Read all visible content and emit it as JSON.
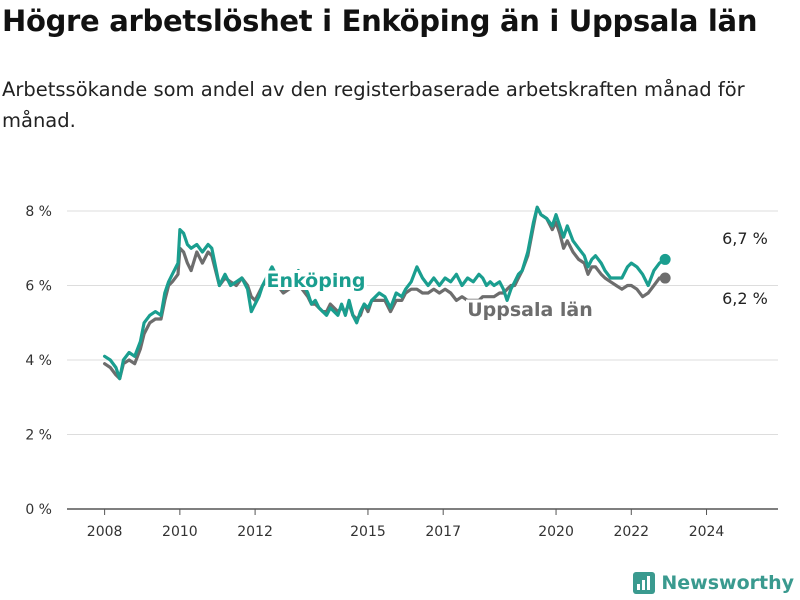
{
  "title": "Högre arbetslöshet i Enköping än i Uppsala län",
  "subtitle": "Arbetssökande som andel av den registerbaserade arbetskraften månad för månad.",
  "brand": {
    "name": "Newsworthy",
    "icon": "bar-chart-icon"
  },
  "colors": {
    "enkoping": "#1a9e8f",
    "uppsala": "#6d6d6d",
    "grid": "#dddddd"
  },
  "chart_data": {
    "type": "line",
    "x_range": [
      2007.0,
      2025.9
    ],
    "ylim": [
      0,
      8
    ],
    "yticks": [
      0,
      2,
      4,
      6,
      8
    ],
    "ytick_labels": [
      "0 %",
      "2 %",
      "4 %",
      "6 %",
      "8 %"
    ],
    "xticks": [
      2008,
      2010,
      2012,
      2015,
      2017,
      2020,
      2022,
      2024
    ],
    "xtick_labels": [
      "2008",
      "2010",
      "2012",
      "2015",
      "2017",
      "2020",
      "2022",
      "2024"
    ],
    "grid": true,
    "series": [
      {
        "name": "Enköping",
        "last_value_label": "6,7 %",
        "points": [
          [
            2008.0,
            4.1
          ],
          [
            2008.15,
            4.0
          ],
          [
            2008.3,
            3.8
          ],
          [
            2008.4,
            3.5
          ],
          [
            2008.5,
            4.0
          ],
          [
            2008.65,
            4.2
          ],
          [
            2008.8,
            4.1
          ],
          [
            2008.95,
            4.5
          ],
          [
            2009.05,
            5.0
          ],
          [
            2009.2,
            5.2
          ],
          [
            2009.35,
            5.3
          ],
          [
            2009.5,
            5.2
          ],
          [
            2009.6,
            5.8
          ],
          [
            2009.7,
            6.1
          ],
          [
            2009.8,
            6.3
          ],
          [
            2009.95,
            6.6
          ],
          [
            2010.0,
            7.5
          ],
          [
            2010.1,
            7.4
          ],
          [
            2010.2,
            7.1
          ],
          [
            2010.3,
            7.0
          ],
          [
            2010.45,
            7.1
          ],
          [
            2010.6,
            6.9
          ],
          [
            2010.75,
            7.1
          ],
          [
            2010.85,
            7.0
          ],
          [
            2010.95,
            6.5
          ],
          [
            2011.05,
            6.0
          ],
          [
            2011.2,
            6.3
          ],
          [
            2011.35,
            6.0
          ],
          [
            2011.5,
            6.1
          ],
          [
            2011.65,
            6.2
          ],
          [
            2011.8,
            5.9
          ],
          [
            2011.9,
            5.3
          ],
          [
            2012.0,
            5.5
          ],
          [
            2012.1,
            5.7
          ],
          [
            2012.2,
            6.0
          ],
          [
            2012.3,
            6.2
          ],
          [
            2012.45,
            6.5
          ],
          [
            2012.6,
            6.2
          ],
          [
            2012.75,
            5.9
          ],
          [
            2012.9,
            6.0
          ],
          [
            2013.0,
            6.1
          ],
          [
            2013.15,
            6.4
          ],
          [
            2013.25,
            6.1
          ],
          [
            2013.4,
            5.8
          ],
          [
            2013.5,
            5.5
          ],
          [
            2013.6,
            5.6
          ],
          [
            2013.7,
            5.4
          ],
          [
            2013.8,
            5.3
          ],
          [
            2013.9,
            5.2
          ],
          [
            2014.0,
            5.4
          ],
          [
            2014.1,
            5.3
          ],
          [
            2014.2,
            5.2
          ],
          [
            2014.3,
            5.5
          ],
          [
            2014.4,
            5.2
          ],
          [
            2014.5,
            5.6
          ],
          [
            2014.6,
            5.2
          ],
          [
            2014.7,
            5.0
          ],
          [
            2014.8,
            5.3
          ],
          [
            2014.9,
            5.5
          ],
          [
            2015.0,
            5.4
          ],
          [
            2015.1,
            5.6
          ],
          [
            2015.2,
            5.7
          ],
          [
            2015.3,
            5.8
          ],
          [
            2015.45,
            5.7
          ],
          [
            2015.6,
            5.4
          ],
          [
            2015.75,
            5.8
          ],
          [
            2015.9,
            5.7
          ],
          [
            2016.0,
            5.9
          ],
          [
            2016.15,
            6.1
          ],
          [
            2016.3,
            6.5
          ],
          [
            2016.45,
            6.2
          ],
          [
            2016.6,
            6.0
          ],
          [
            2016.75,
            6.2
          ],
          [
            2016.9,
            6.0
          ],
          [
            2017.05,
            6.2
          ],
          [
            2017.2,
            6.1
          ],
          [
            2017.35,
            6.3
          ],
          [
            2017.5,
            6.0
          ],
          [
            2017.65,
            6.2
          ],
          [
            2017.8,
            6.1
          ],
          [
            2017.95,
            6.3
          ],
          [
            2018.05,
            6.2
          ],
          [
            2018.15,
            6.0
          ],
          [
            2018.25,
            6.1
          ],
          [
            2018.35,
            6.0
          ],
          [
            2018.5,
            6.1
          ],
          [
            2018.6,
            5.9
          ],
          [
            2018.7,
            5.6
          ],
          [
            2018.8,
            5.9
          ],
          [
            2018.9,
            6.1
          ],
          [
            2019.0,
            6.3
          ],
          [
            2019.1,
            6.4
          ],
          [
            2019.25,
            6.9
          ],
          [
            2019.4,
            7.7
          ],
          [
            2019.5,
            8.1
          ],
          [
            2019.6,
            7.9
          ],
          [
            2019.75,
            7.8
          ],
          [
            2019.9,
            7.6
          ],
          [
            2020.0,
            7.9
          ],
          [
            2020.1,
            7.6
          ],
          [
            2020.2,
            7.3
          ],
          [
            2020.3,
            7.6
          ],
          [
            2020.45,
            7.2
          ],
          [
            2020.6,
            7.0
          ],
          [
            2020.75,
            6.8
          ],
          [
            2020.85,
            6.5
          ],
          [
            2020.95,
            6.7
          ],
          [
            2021.05,
            6.8
          ],
          [
            2021.2,
            6.6
          ],
          [
            2021.3,
            6.4
          ],
          [
            2021.45,
            6.2
          ],
          [
            2021.6,
            6.2
          ],
          [
            2021.75,
            6.2
          ],
          [
            2021.9,
            6.5
          ],
          [
            2022.0,
            6.6
          ],
          [
            2022.15,
            6.5
          ],
          [
            2022.3,
            6.3
          ],
          [
            2022.45,
            6.0
          ],
          [
            2022.6,
            6.4
          ],
          [
            2022.75,
            6.6
          ],
          [
            2022.9,
            6.7
          ]
        ]
      },
      {
        "name": "Uppsala län",
        "last_value_label": "6,2 %",
        "points": [
          [
            2008.0,
            3.9
          ],
          [
            2008.15,
            3.8
          ],
          [
            2008.3,
            3.6
          ],
          [
            2008.4,
            3.5
          ],
          [
            2008.5,
            3.9
          ],
          [
            2008.65,
            4.0
          ],
          [
            2008.8,
            3.9
          ],
          [
            2008.95,
            4.3
          ],
          [
            2009.05,
            4.7
          ],
          [
            2009.2,
            5.0
          ],
          [
            2009.35,
            5.1
          ],
          [
            2009.5,
            5.1
          ],
          [
            2009.6,
            5.6
          ],
          [
            2009.7,
            6.0
          ],
          [
            2009.8,
            6.1
          ],
          [
            2009.95,
            6.3
          ],
          [
            2010.0,
            7.0
          ],
          [
            2010.1,
            6.9
          ],
          [
            2010.2,
            6.6
          ],
          [
            2010.3,
            6.4
          ],
          [
            2010.45,
            6.9
          ],
          [
            2010.6,
            6.6
          ],
          [
            2010.75,
            6.9
          ],
          [
            2010.85,
            6.8
          ],
          [
            2010.95,
            6.4
          ],
          [
            2011.05,
            6.0
          ],
          [
            2011.2,
            6.2
          ],
          [
            2011.35,
            6.1
          ],
          [
            2011.5,
            6.0
          ],
          [
            2011.65,
            6.2
          ],
          [
            2011.8,
            6.0
          ],
          [
            2011.9,
            5.7
          ],
          [
            2012.0,
            5.6
          ],
          [
            2012.1,
            5.8
          ],
          [
            2012.2,
            6.0
          ],
          [
            2012.3,
            6.1
          ],
          [
            2012.45,
            6.3
          ],
          [
            2012.6,
            6.0
          ],
          [
            2012.75,
            5.8
          ],
          [
            2012.9,
            5.9
          ],
          [
            2013.0,
            6.0
          ],
          [
            2013.15,
            6.1
          ],
          [
            2013.25,
            5.9
          ],
          [
            2013.4,
            5.7
          ],
          [
            2013.5,
            5.5
          ],
          [
            2013.6,
            5.5
          ],
          [
            2013.7,
            5.4
          ],
          [
            2013.8,
            5.3
          ],
          [
            2013.9,
            5.3
          ],
          [
            2014.0,
            5.5
          ],
          [
            2014.1,
            5.4
          ],
          [
            2014.2,
            5.3
          ],
          [
            2014.3,
            5.4
          ],
          [
            2014.4,
            5.3
          ],
          [
            2014.5,
            5.5
          ],
          [
            2014.6,
            5.2
          ],
          [
            2014.7,
            5.1
          ],
          [
            2014.8,
            5.2
          ],
          [
            2014.9,
            5.5
          ],
          [
            2015.0,
            5.3
          ],
          [
            2015.1,
            5.6
          ],
          [
            2015.2,
            5.6
          ],
          [
            2015.3,
            5.6
          ],
          [
            2015.45,
            5.6
          ],
          [
            2015.6,
            5.3
          ],
          [
            2015.75,
            5.6
          ],
          [
            2015.9,
            5.6
          ],
          [
            2016.0,
            5.8
          ],
          [
            2016.15,
            5.9
          ],
          [
            2016.3,
            5.9
          ],
          [
            2016.45,
            5.8
          ],
          [
            2016.6,
            5.8
          ],
          [
            2016.75,
            5.9
          ],
          [
            2016.9,
            5.8
          ],
          [
            2017.05,
            5.9
          ],
          [
            2017.2,
            5.8
          ],
          [
            2017.35,
            5.6
          ],
          [
            2017.5,
            5.7
          ],
          [
            2017.65,
            5.6
          ],
          [
            2017.8,
            5.6
          ],
          [
            2017.95,
            5.6
          ],
          [
            2018.05,
            5.7
          ],
          [
            2018.15,
            5.7
          ],
          [
            2018.25,
            5.7
          ],
          [
            2018.35,
            5.7
          ],
          [
            2018.5,
            5.8
          ],
          [
            2018.6,
            5.8
          ],
          [
            2018.7,
            5.9
          ],
          [
            2018.8,
            6.0
          ],
          [
            2018.9,
            6.0
          ],
          [
            2019.0,
            6.2
          ],
          [
            2019.1,
            6.4
          ],
          [
            2019.25,
            6.8
          ],
          [
            2019.4,
            7.6
          ],
          [
            2019.5,
            8.1
          ],
          [
            2019.6,
            7.9
          ],
          [
            2019.75,
            7.8
          ],
          [
            2019.9,
            7.5
          ],
          [
            2020.0,
            7.7
          ],
          [
            2020.1,
            7.4
          ],
          [
            2020.2,
            7.0
          ],
          [
            2020.3,
            7.2
          ],
          [
            2020.45,
            6.9
          ],
          [
            2020.6,
            6.7
          ],
          [
            2020.75,
            6.6
          ],
          [
            2020.85,
            6.3
          ],
          [
            2020.95,
            6.5
          ],
          [
            2021.05,
            6.5
          ],
          [
            2021.2,
            6.3
          ],
          [
            2021.3,
            6.2
          ],
          [
            2021.45,
            6.1
          ],
          [
            2021.6,
            6.0
          ],
          [
            2021.75,
            5.9
          ],
          [
            2021.9,
            6.0
          ],
          [
            2022.0,
            6.0
          ],
          [
            2022.15,
            5.9
          ],
          [
            2022.3,
            5.7
          ],
          [
            2022.45,
            5.8
          ],
          [
            2022.6,
            6.0
          ],
          [
            2022.75,
            6.2
          ],
          [
            2022.9,
            6.2
          ]
        ]
      }
    ]
  }
}
